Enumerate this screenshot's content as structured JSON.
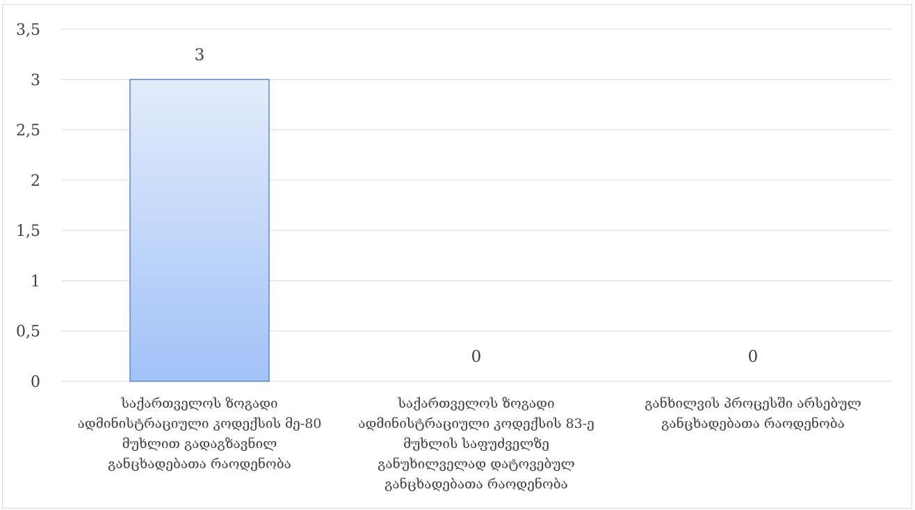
{
  "chart_data": {
    "type": "bar",
    "categories": [
      [
        "საქართველოს ზოგადი",
        "ადმინისტრაციული კოდექსის მე-80",
        "მუხლით გადაგზავნილ",
        "განცხადებათა რაოდენობა"
      ],
      [
        "საქართველოს ზოგადი",
        "ადმინისტრაციული კოდექსის 83-ე",
        "მუხლის საფუძველზე",
        "განუხილველად დატოვებულ",
        "განცხადებათა რაოდენობა"
      ],
      [
        "განხილვის პროცესში არსებულ",
        "განცხადებათა რაოდენობა"
      ]
    ],
    "values": [
      3,
      0,
      0
    ],
    "data_labels": [
      "3",
      "0",
      "0"
    ],
    "yticks": [
      "0",
      "0,5",
      "1",
      "1,5",
      "2",
      "2,5",
      "3",
      "3,5"
    ],
    "ylim": [
      0,
      3.5
    ],
    "ystep": 0.5,
    "grid": true,
    "legend": "none",
    "title": "",
    "xlabel": "",
    "ylabel": "",
    "colors": {
      "bar_top": "#e3ecfb",
      "bar_bottom": "#a2c2f8",
      "bar_border": "#5b86cf",
      "grid": "#d9d9d9",
      "text": "#404040"
    }
  }
}
